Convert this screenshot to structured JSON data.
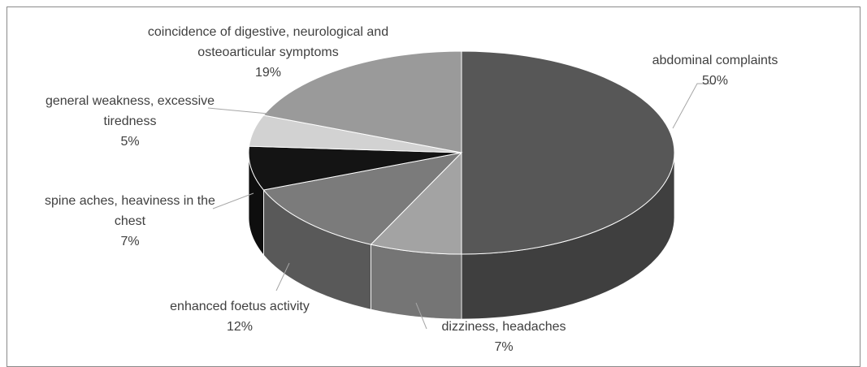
{
  "chart_data": {
    "type": "pie3d",
    "categories": [
      "abdominal complaints",
      "dizziness, headaches",
      "enhanced foetus activity",
      "spine aches, heaviness in the chest",
      "general weakness, excessive tiredness",
      "coincidence of digestive, neurological and osteoarticular symptoms"
    ],
    "values": [
      50,
      7,
      12,
      7,
      5,
      19
    ],
    "value_labels": [
      "50%",
      "7%",
      "12%",
      "7%",
      "5%",
      "19%"
    ],
    "colors": [
      "#575757",
      "#a3a3a3",
      "#7b7b7b",
      "#141414",
      "#d2d2d2",
      "#9a9a9a"
    ]
  }
}
